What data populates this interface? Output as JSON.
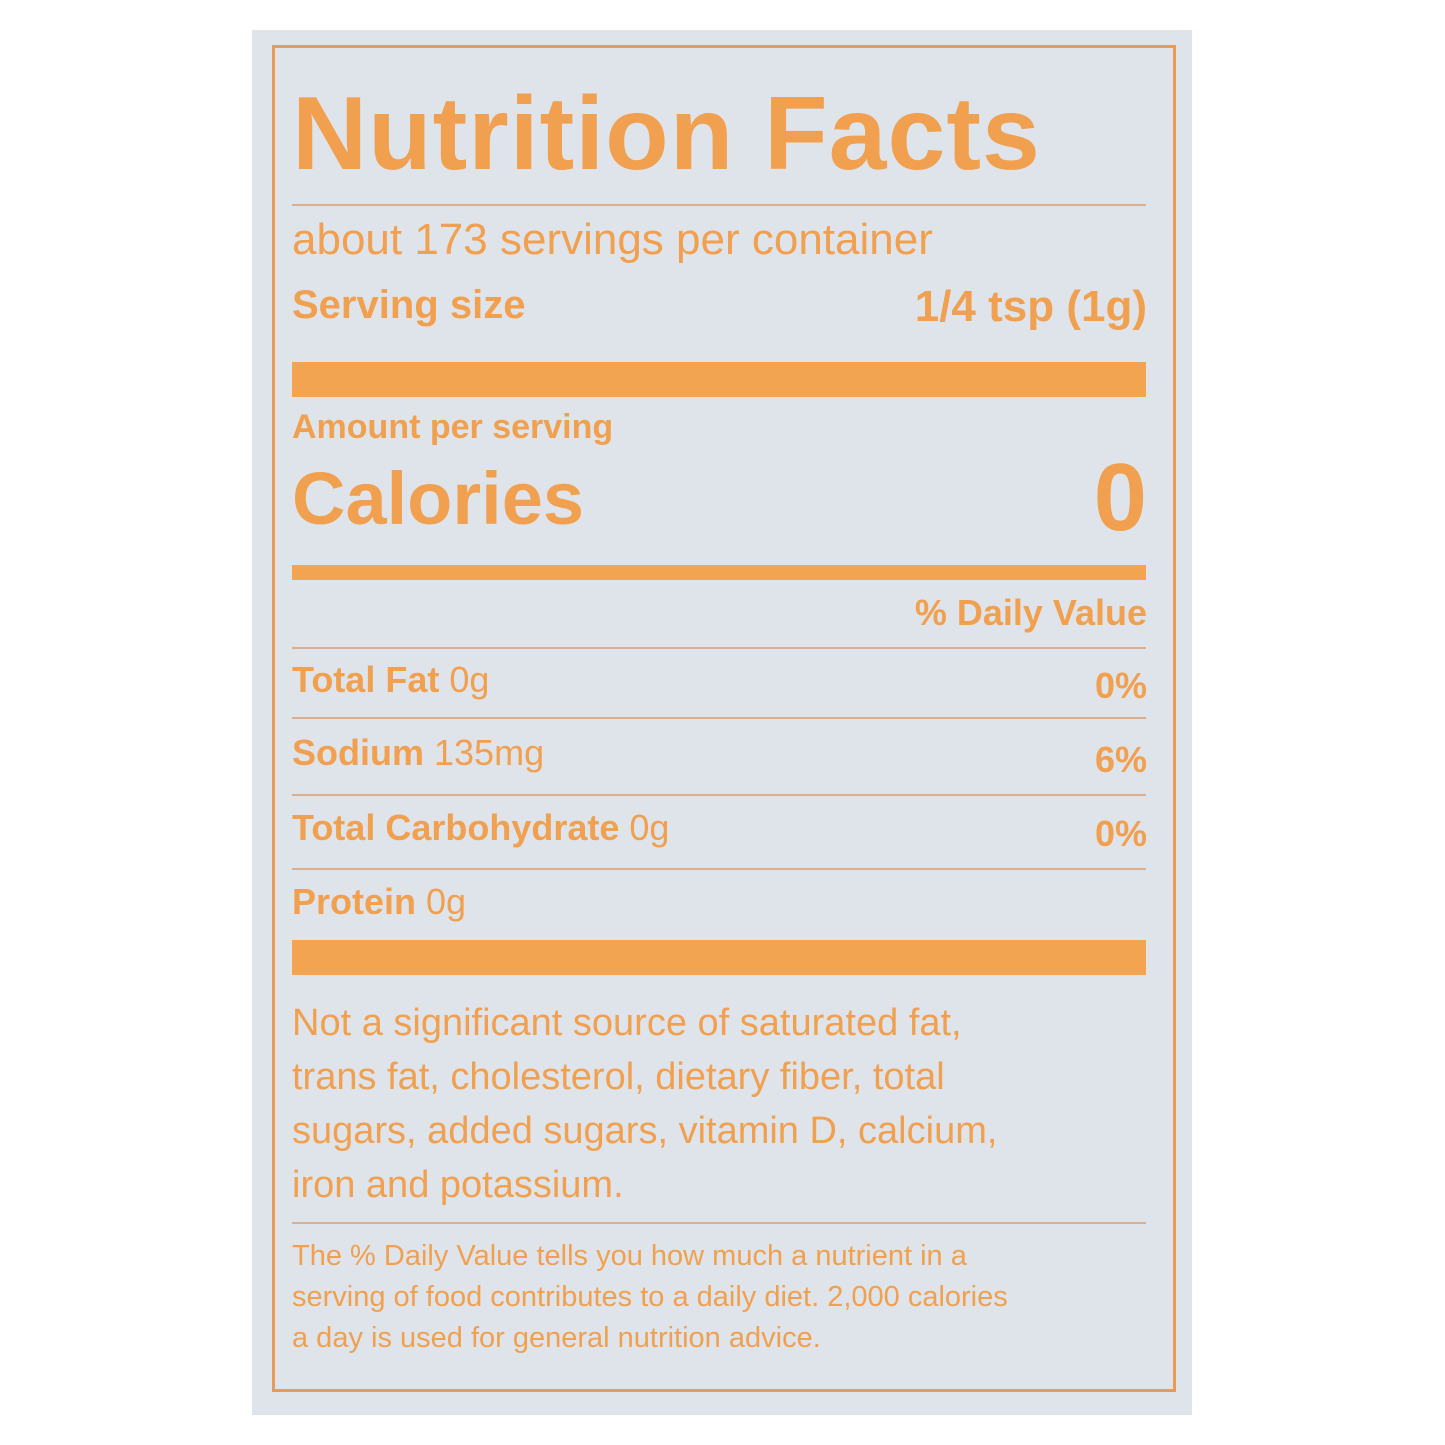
{
  "label": {
    "title": "Nutrition Facts",
    "servings_per_container": "about 173 servings per container",
    "serving_size_label": "Serving size",
    "serving_size_value": "1/4 tsp (1g)",
    "amount_per_serving": "Amount per serving",
    "calories_label": "Calories",
    "calories_value": "0",
    "daily_value_header": "% Daily Value",
    "nutrients": [
      {
        "name": "Total Fat",
        "amount": "0g",
        "dv": "0%"
      },
      {
        "name": "Sodium",
        "amount": "135mg",
        "dv": "6%"
      },
      {
        "name": "Total Carbohydrate",
        "amount": "0g",
        "dv": "0%"
      },
      {
        "name": "Protein",
        "amount": "0g",
        "dv": ""
      }
    ],
    "not_significant": [
      "Not a significant source of saturated fat,",
      "trans fat, cholesterol, dietary fiber, total",
      "sugars, added sugars, vitamin D, calcium,",
      "iron and potassium."
    ],
    "footnote": [
      "The % Daily Value tells you how much a nutrient in a",
      "serving of food contributes to a daily diet. 2,000 calories",
      "a day is used for general nutrition advice."
    ]
  },
  "colors": {
    "ink": "#f0a04e",
    "background": "#dfe4eb"
  }
}
